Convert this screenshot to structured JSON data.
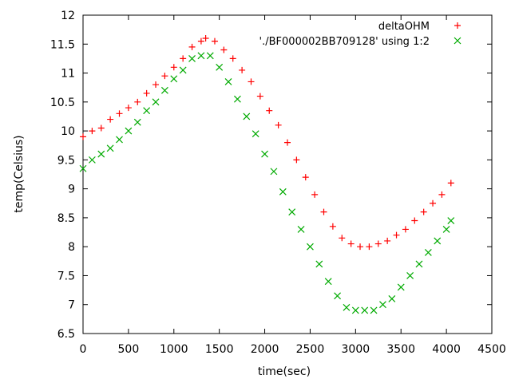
{
  "chart_data": {
    "type": "scatter",
    "xlabel": "time(sec)",
    "ylabel": "temp(Celsius)",
    "xlim": [
      0,
      4500
    ],
    "ylim": [
      6.5,
      12
    ],
    "x_ticks": [
      0,
      500,
      1000,
      1500,
      2000,
      2500,
      3000,
      3500,
      4000,
      4500
    ],
    "y_ticks": [
      6.5,
      7,
      7.5,
      8,
      8.5,
      9,
      9.5,
      10,
      10.5,
      11,
      11.5,
      12
    ],
    "x_tick_labels": [
      "0",
      "500",
      "1000",
      "1500",
      "2000",
      "2500",
      "3000",
      "3500",
      "4000",
      "4500"
    ],
    "y_tick_labels": [
      "6.5",
      "7",
      "7.5",
      "8",
      "8.5",
      "9",
      "9.5",
      "10",
      "10.5",
      "11",
      "11.5",
      "12"
    ],
    "grid": false,
    "legend_position": "top-right",
    "series": [
      {
        "name": "deltaOHM",
        "marker": "plus",
        "color": "#ff0000",
        "points": [
          [
            0,
            9.9
          ],
          [
            100,
            10.0
          ],
          [
            200,
            10.05
          ],
          [
            300,
            10.2
          ],
          [
            400,
            10.3
          ],
          [
            500,
            10.4
          ],
          [
            600,
            10.5
          ],
          [
            700,
            10.65
          ],
          [
            800,
            10.8
          ],
          [
            900,
            10.95
          ],
          [
            1000,
            11.1
          ],
          [
            1100,
            11.25
          ],
          [
            1200,
            11.45
          ],
          [
            1300,
            11.55
          ],
          [
            1350,
            11.6
          ],
          [
            1450,
            11.55
          ],
          [
            1550,
            11.4
          ],
          [
            1650,
            11.25
          ],
          [
            1750,
            11.05
          ],
          [
            1850,
            10.85
          ],
          [
            1950,
            10.6
          ],
          [
            2050,
            10.35
          ],
          [
            2150,
            10.1
          ],
          [
            2250,
            9.8
          ],
          [
            2350,
            9.5
          ],
          [
            2450,
            9.2
          ],
          [
            2550,
            8.9
          ],
          [
            2650,
            8.6
          ],
          [
            2750,
            8.35
          ],
          [
            2850,
            8.15
          ],
          [
            2950,
            8.05
          ],
          [
            3050,
            8.0
          ],
          [
            3150,
            8.0
          ],
          [
            3250,
            8.05
          ],
          [
            3350,
            8.1
          ],
          [
            3450,
            8.2
          ],
          [
            3550,
            8.3
          ],
          [
            3650,
            8.45
          ],
          [
            3750,
            8.6
          ],
          [
            3850,
            8.75
          ],
          [
            3950,
            8.9
          ],
          [
            4050,
            9.1
          ]
        ]
      },
      {
        "name": "'./BF000002BB709128' using 1:2",
        "marker": "cross",
        "color": "#00aa00",
        "points": [
          [
            0,
            9.35
          ],
          [
            100,
            9.5
          ],
          [
            200,
            9.6
          ],
          [
            300,
            9.7
          ],
          [
            400,
            9.85
          ],
          [
            500,
            10.0
          ],
          [
            600,
            10.15
          ],
          [
            700,
            10.35
          ],
          [
            800,
            10.5
          ],
          [
            900,
            10.7
          ],
          [
            1000,
            10.9
          ],
          [
            1100,
            11.05
          ],
          [
            1200,
            11.25
          ],
          [
            1300,
            11.3
          ],
          [
            1400,
            11.3
          ],
          [
            1500,
            11.1
          ],
          [
            1600,
            10.85
          ],
          [
            1700,
            10.55
          ],
          [
            1800,
            10.25
          ],
          [
            1900,
            9.95
          ],
          [
            2000,
            9.6
          ],
          [
            2100,
            9.3
          ],
          [
            2200,
            8.95
          ],
          [
            2300,
            8.6
          ],
          [
            2400,
            8.3
          ],
          [
            2500,
            8.0
          ],
          [
            2600,
            7.7
          ],
          [
            2700,
            7.4
          ],
          [
            2800,
            7.15
          ],
          [
            2900,
            6.95
          ],
          [
            3000,
            6.9
          ],
          [
            3100,
            6.9
          ],
          [
            3200,
            6.9
          ],
          [
            3300,
            7.0
          ],
          [
            3400,
            7.1
          ],
          [
            3500,
            7.3
          ],
          [
            3600,
            7.5
          ],
          [
            3700,
            7.7
          ],
          [
            3800,
            7.9
          ],
          [
            3900,
            8.1
          ],
          [
            4000,
            8.3
          ],
          [
            4050,
            8.45
          ]
        ]
      }
    ]
  }
}
